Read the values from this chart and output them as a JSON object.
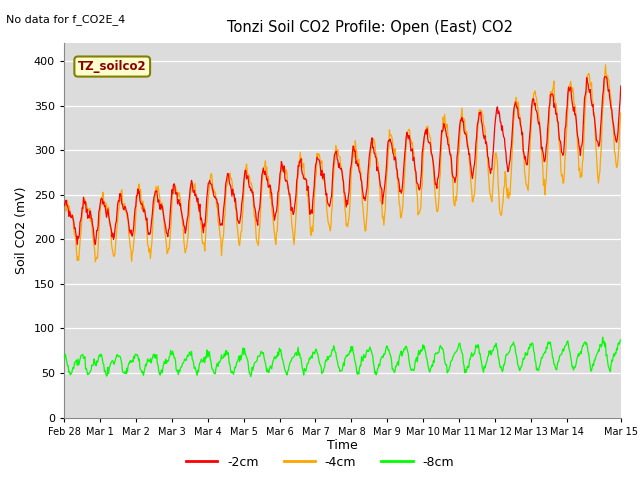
{
  "title": "Tonzi Soil CO2 Profile: Open (East) CO2",
  "subtitle": "No data for f_CO2E_4",
  "ylabel": "Soil CO2 (mV)",
  "xlabel": "Time",
  "box_label": "TZ_soilco2",
  "legend_labels": [
    "-2cm",
    "-4cm",
    "-8cm"
  ],
  "colors": {
    "red": "#FF0000",
    "orange": "#FFA500",
    "green": "#00FF00"
  },
  "ylim": [
    0,
    420
  ],
  "yticks": [
    0,
    50,
    100,
    150,
    200,
    250,
    300,
    350,
    400
  ],
  "xlim": [
    0,
    15.5
  ],
  "bg_color": "#DCDCDC",
  "fig_bg": "#FFFFFF",
  "tick_positions": [
    0,
    1,
    2,
    3,
    4,
    5,
    6,
    7,
    8,
    9,
    10,
    11,
    12,
    13,
    14,
    15.5
  ],
  "tick_labels": [
    "Feb 28",
    "Mar 1",
    "Mar 2",
    "Mar 3",
    "Mar 4",
    "Mar 5",
    "Mar 6",
    "Mar 7",
    "Mar 8",
    "Mar 9",
    "Mar 10",
    "Mar 11",
    "Mar 12",
    "Mar 13",
    "Mar 14",
    "Mar 15"
  ]
}
